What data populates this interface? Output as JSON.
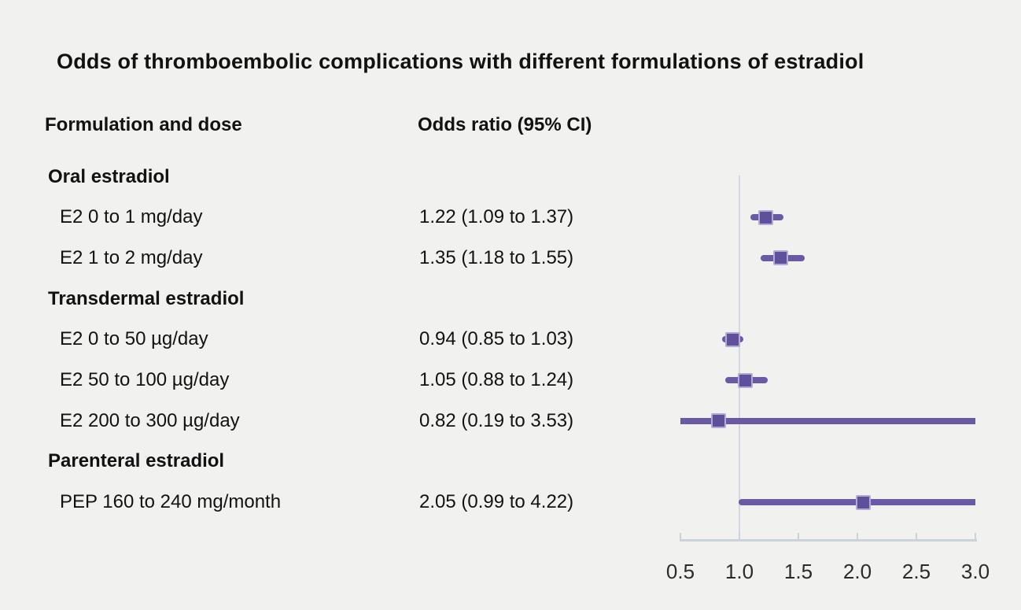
{
  "page": {
    "title": "Odds of thromboembolic complications with different formulations of estradiol"
  },
  "columns": {
    "formulation_header": "Formulation and dose",
    "odds_ratio_header": "Odds ratio (95% CI)"
  },
  "colors": {
    "background": "#f1f1ef",
    "text": "#121212",
    "tick_label_text": "#2b2b2b",
    "ci_line_purple": "#6a5aa5",
    "marker_square_purple": "#5f509c",
    "marker_square_border": "#b4aad5",
    "axis_line_gray": "#ccd2da",
    "reference_line_gray": "#d3d7de"
  },
  "chart_data": {
    "type": "forest",
    "title": "Odds of thromboembolic complications with different formulations of estradiol",
    "xlabel": "Odds ratio",
    "xlim": [
      0.5,
      3.0
    ],
    "reference_value": 1.0,
    "x_ticks": [
      0.5,
      1.0,
      1.5,
      2.0,
      2.5,
      3.0
    ],
    "x_tick_labels": [
      "0.5",
      "1.0",
      "1.5",
      "2.0",
      "2.5",
      "3.0"
    ],
    "grid": false,
    "legend": false,
    "rows": [
      {
        "kind": "group",
        "label": "Oral estradiol"
      },
      {
        "kind": "item",
        "label": "E2 0 to 1 mg/day",
        "value_text": "1.22 (1.09 to 1.37)",
        "or": 1.22,
        "ci_low": 1.09,
        "ci_high": 1.37
      },
      {
        "kind": "item",
        "label": "E2 1 to 2 mg/day",
        "value_text": "1.35 (1.18 to 1.55)",
        "or": 1.35,
        "ci_low": 1.18,
        "ci_high": 1.55
      },
      {
        "kind": "group",
        "label": "Transdermal estradiol"
      },
      {
        "kind": "item",
        "label": "E2 0 to 50 µg/day",
        "value_text": "0.94 (0.85 to 1.03)",
        "or": 0.94,
        "ci_low": 0.85,
        "ci_high": 1.03
      },
      {
        "kind": "item",
        "label": "E2 50 to 100 µg/day",
        "value_text": "1.05 (0.88 to 1.24)",
        "or": 1.05,
        "ci_low": 0.88,
        "ci_high": 1.24
      },
      {
        "kind": "item",
        "label": "E2 200 to 300 µg/day",
        "value_text": "0.82 (0.19 to 3.53)",
        "or": 0.82,
        "ci_low": 0.19,
        "ci_high": 3.53
      },
      {
        "kind": "group",
        "label": "Parenteral estradiol"
      },
      {
        "kind": "item",
        "label": "PEP 160 to 240 mg/month",
        "value_text": "2.05 (0.99 to 4.22)",
        "or": 2.05,
        "ci_low": 0.99,
        "ci_high": 4.22
      }
    ]
  }
}
